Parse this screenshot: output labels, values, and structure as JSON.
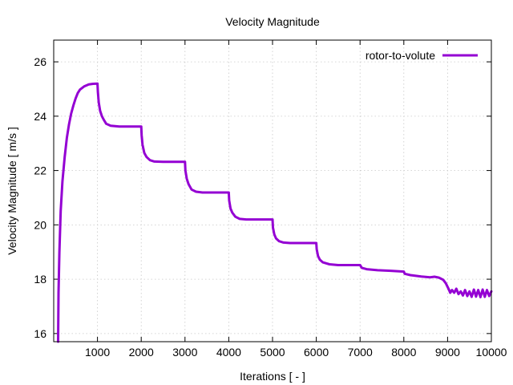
{
  "chart_data": {
    "type": "line",
    "title": "Velocity Magnitude",
    "xlabel": "Iterations [ - ]",
    "ylabel": "Velocity Magnitude [ m/s ]",
    "xlim": [
      0,
      10000
    ],
    "ylim": [
      15.7,
      26.8
    ],
    "x_ticks": [
      1000,
      2000,
      3000,
      4000,
      5000,
      6000,
      7000,
      8000,
      9000,
      10000
    ],
    "y_ticks": [
      16,
      18,
      20,
      22,
      24,
      26
    ],
    "grid": true,
    "legend_position": "top-right",
    "series": [
      {
        "name": "rotor-to-volute",
        "color": "#9400d3",
        "points": [
          [
            100,
            15.7
          ],
          [
            110,
            17.5
          ],
          [
            130,
            19.0
          ],
          [
            160,
            20.5
          ],
          [
            200,
            21.6
          ],
          [
            250,
            22.5
          ],
          [
            300,
            23.2
          ],
          [
            350,
            23.7
          ],
          [
            400,
            24.1
          ],
          [
            450,
            24.4
          ],
          [
            500,
            24.65
          ],
          [
            550,
            24.85
          ],
          [
            600,
            24.98
          ],
          [
            700,
            25.1
          ],
          [
            800,
            25.17
          ],
          [
            900,
            25.19
          ],
          [
            1000,
            25.2
          ],
          [
            1010,
            24.9
          ],
          [
            1030,
            24.5
          ],
          [
            1060,
            24.2
          ],
          [
            1100,
            24.0
          ],
          [
            1150,
            23.85
          ],
          [
            1200,
            23.72
          ],
          [
            1300,
            23.65
          ],
          [
            1500,
            23.62
          ],
          [
            2000,
            23.62
          ],
          [
            2010,
            23.3
          ],
          [
            2030,
            22.95
          ],
          [
            2070,
            22.65
          ],
          [
            2120,
            22.5
          ],
          [
            2200,
            22.38
          ],
          [
            2300,
            22.33
          ],
          [
            2500,
            22.32
          ],
          [
            3000,
            22.32
          ],
          [
            3010,
            22.0
          ],
          [
            3040,
            21.7
          ],
          [
            3080,
            21.5
          ],
          [
            3150,
            21.3
          ],
          [
            3250,
            21.22
          ],
          [
            3400,
            21.19
          ],
          [
            4000,
            21.19
          ],
          [
            4010,
            20.9
          ],
          [
            4040,
            20.6
          ],
          [
            4080,
            20.45
          ],
          [
            4150,
            20.3
          ],
          [
            4250,
            20.22
          ],
          [
            4400,
            20.2
          ],
          [
            5000,
            20.2
          ],
          [
            5010,
            19.9
          ],
          [
            5040,
            19.65
          ],
          [
            5080,
            19.5
          ],
          [
            5150,
            19.4
          ],
          [
            5250,
            19.35
          ],
          [
            5400,
            19.33
          ],
          [
            6000,
            19.33
          ],
          [
            6010,
            19.1
          ],
          [
            6040,
            18.85
          ],
          [
            6080,
            18.72
          ],
          [
            6150,
            18.62
          ],
          [
            6300,
            18.55
          ],
          [
            6500,
            18.52
          ],
          [
            7000,
            18.52
          ],
          [
            7040,
            18.42
          ],
          [
            7150,
            18.37
          ],
          [
            7400,
            18.33
          ],
          [
            7700,
            18.31
          ],
          [
            8000,
            18.28
          ],
          [
            8020,
            18.2
          ],
          [
            8150,
            18.15
          ],
          [
            8400,
            18.1
          ],
          [
            8600,
            18.07
          ],
          [
            8700,
            18.09
          ],
          [
            8800,
            18.06
          ],
          [
            8900,
            17.98
          ],
          [
            8960,
            17.85
          ],
          [
            9020,
            17.65
          ],
          [
            9060,
            17.5
          ],
          [
            9100,
            17.6
          ],
          [
            9150,
            17.5
          ],
          [
            9200,
            17.65
          ],
          [
            9250,
            17.45
          ],
          [
            9300,
            17.55
          ],
          [
            9350,
            17.4
          ],
          [
            9400,
            17.6
          ],
          [
            9450,
            17.38
          ],
          [
            9500,
            17.55
          ],
          [
            9550,
            17.35
          ],
          [
            9600,
            17.62
          ],
          [
            9650,
            17.36
          ],
          [
            9700,
            17.6
          ],
          [
            9750,
            17.34
          ],
          [
            9800,
            17.62
          ],
          [
            9850,
            17.35
          ],
          [
            9900,
            17.6
          ],
          [
            9950,
            17.38
          ],
          [
            10000,
            17.55
          ]
        ]
      }
    ]
  }
}
